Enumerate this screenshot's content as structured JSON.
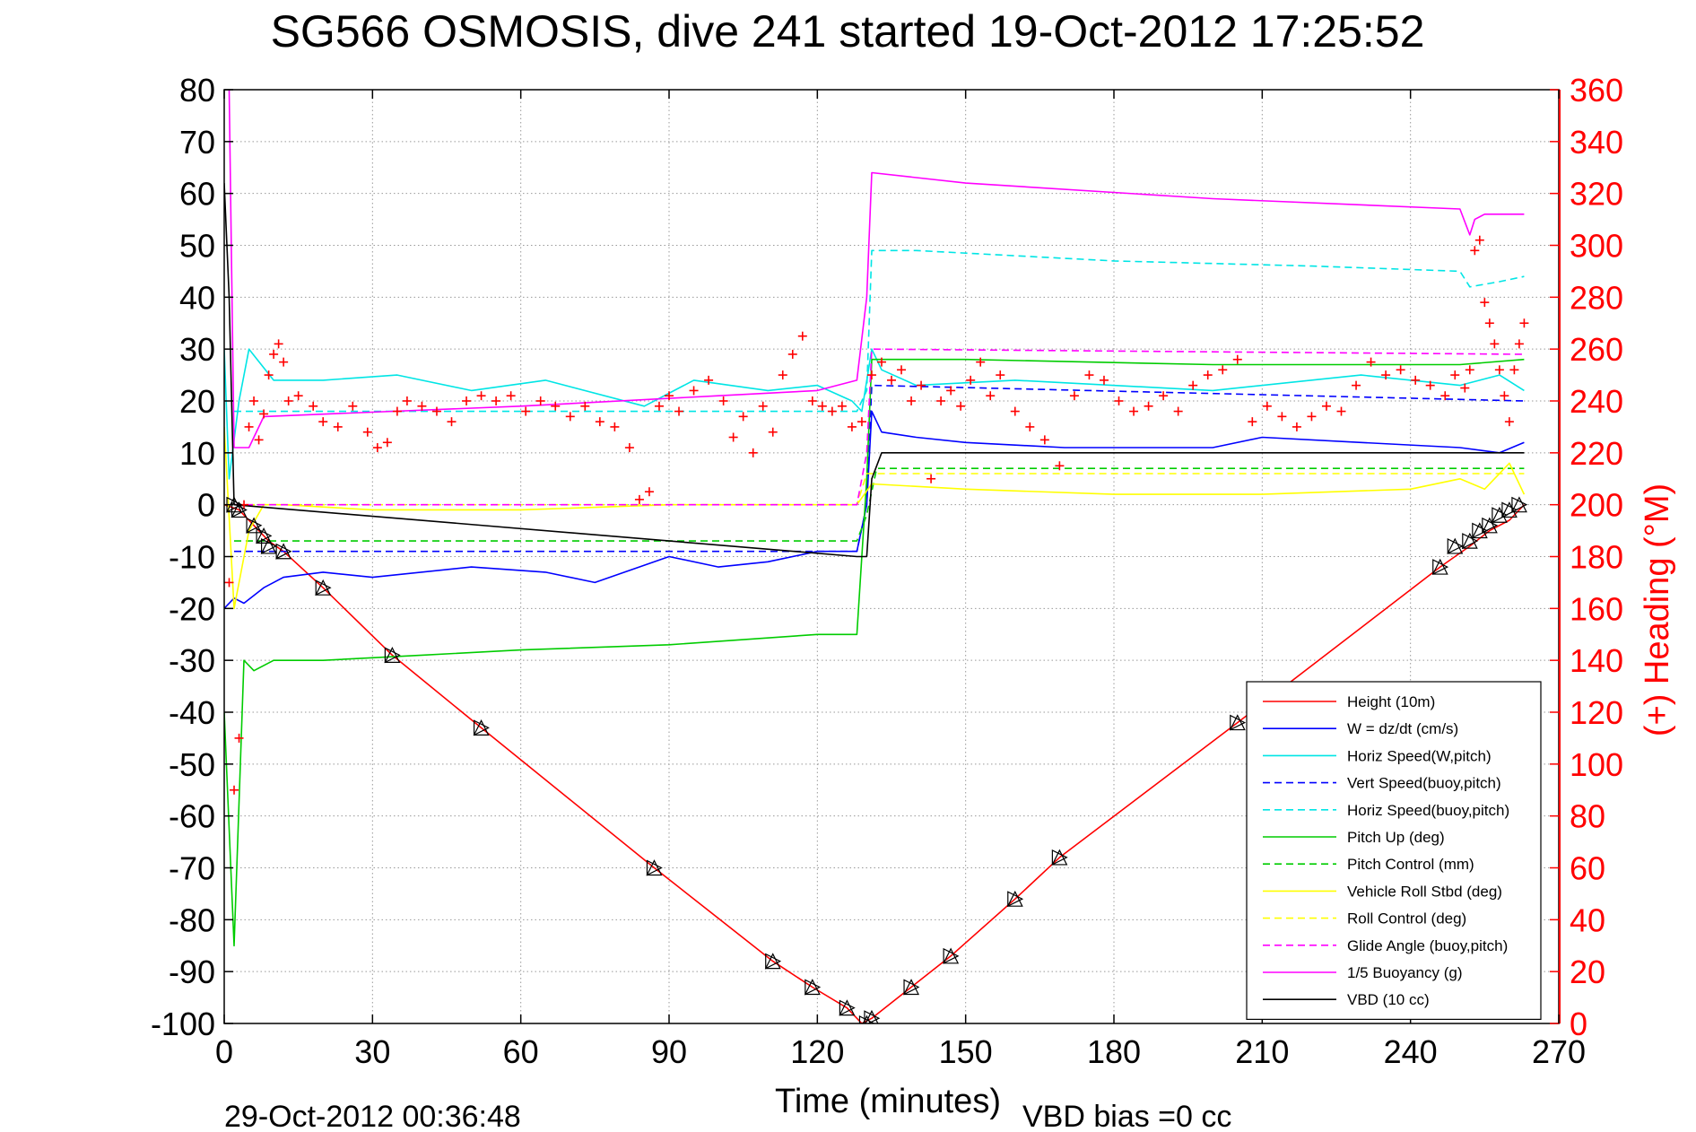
{
  "chart_data": {
    "type": "line",
    "title": "SG566 OSMOSIS, dive 241 started 19-Oct-2012 17:25:52",
    "xlabel": "Time (minutes)",
    "ylabel": "",
    "ylabel_right": "(+) Heading (°M)",
    "footer_left": "29-Oct-2012 00:36:48",
    "footer_right": "VBD bias =0 cc",
    "xlim": [
      0,
      270
    ],
    "ylim": [
      -100,
      80
    ],
    "ylim_right": [
      0,
      360
    ],
    "right_axis_color": "#ff0000",
    "xticks": [
      0,
      30,
      60,
      90,
      120,
      150,
      180,
      210,
      240,
      270
    ],
    "yticks": [
      -100,
      -90,
      -80,
      -70,
      -60,
      -50,
      -40,
      -30,
      -20,
      -10,
      0,
      10,
      20,
      30,
      40,
      50,
      60,
      70,
      80
    ],
    "yticks_right": [
      0,
      20,
      40,
      60,
      80,
      100,
      120,
      140,
      160,
      180,
      200,
      220,
      240,
      260,
      280,
      300,
      320,
      340,
      360
    ],
    "grid": true,
    "legend_position": "bottom-right",
    "series": [
      {
        "name": "Height (10m)",
        "color": "#ff0000",
        "style": "solid",
        "x": [
          0,
          3,
          6,
          9,
          12,
          20,
          34,
          52,
          87,
          111,
          119,
          126,
          129,
          131,
          139,
          147,
          160,
          169,
          205,
          246,
          252,
          256,
          260,
          263
        ],
        "y": [
          0,
          -1,
          -4,
          -7,
          -9,
          -16,
          -29,
          -43,
          -70,
          -88,
          -93,
          -97,
          -100,
          -99,
          -93,
          -87,
          -76,
          -68,
          -42,
          -12,
          -8,
          -5,
          -3,
          0
        ]
      },
      {
        "name": "W = dz/dt (cm/s)",
        "color": "#0000ff",
        "style": "solid",
        "x": [
          0,
          2,
          4,
          8,
          12,
          20,
          30,
          50,
          65,
          75,
          90,
          100,
          110,
          120,
          128,
          130,
          131,
          133,
          140,
          150,
          170,
          200,
          210,
          230,
          250,
          258,
          263
        ],
        "y": [
          -20,
          -18,
          -19,
          -16,
          -14,
          -13,
          -14,
          -12,
          -13,
          -15,
          -10,
          -12,
          -11,
          -9,
          -9,
          0,
          18,
          14,
          13,
          12,
          11,
          11,
          13,
          12,
          11,
          10,
          12
        ]
      },
      {
        "name": "Horiz Speed(W,pitch)",
        "color": "#00e5e5",
        "style": "solid",
        "x": [
          0,
          1,
          3,
          5,
          10,
          20,
          35,
          50,
          65,
          85,
          95,
          110,
          120,
          127,
          129,
          131,
          133,
          140,
          160,
          200,
          230,
          250,
          258,
          263
        ],
        "y": [
          30,
          5,
          20,
          30,
          24,
          24,
          25,
          22,
          24,
          19,
          24,
          22,
          23,
          20,
          18,
          30,
          26,
          23,
          24,
          22,
          25,
          23,
          25,
          22
        ]
      },
      {
        "name": "Vert Speed(buoy,pitch)",
        "color": "#0000ff",
        "style": "dashed",
        "x": [
          2,
          128,
          130,
          131,
          263
        ],
        "y": [
          -9,
          -9,
          0,
          23,
          20
        ]
      },
      {
        "name": "Horiz Speed(buoy,pitch)",
        "color": "#00e5e5",
        "style": "dashed",
        "x": [
          2,
          128,
          130,
          131,
          140,
          180,
          220,
          250,
          252,
          258,
          263
        ],
        "y": [
          18,
          18,
          22,
          49,
          49,
          47,
          46,
          45,
          42,
          43,
          44
        ]
      },
      {
        "name": "Pitch Up (deg)",
        "color": "#00cc00",
        "style": "solid",
        "x": [
          0,
          2,
          4,
          6,
          10,
          20,
          40,
          60,
          90,
          120,
          128,
          130,
          131,
          150,
          200,
          250,
          263
        ],
        "y": [
          -40,
          -85,
          -30,
          -32,
          -30,
          -30,
          -29,
          -28,
          -27,
          -25,
          -25,
          5,
          28,
          28,
          27,
          27,
          28
        ]
      },
      {
        "name": "Pitch Control (mm)",
        "color": "#00cc00",
        "style": "dashed",
        "x": [
          2,
          128,
          130,
          132,
          263
        ],
        "y": [
          -7,
          -7,
          -2,
          7,
          7
        ]
      },
      {
        "name": "Vehicle Roll Stbd (deg)",
        "color": "#ffff00",
        "style": "solid",
        "x": [
          0,
          2,
          5,
          8,
          12,
          30,
          60,
          90,
          120,
          128,
          131,
          150,
          180,
          210,
          240,
          250,
          255,
          260,
          263
        ],
        "y": [
          15,
          -20,
          -5,
          0,
          0,
          -1,
          -1,
          0,
          0,
          0,
          4,
          3,
          2,
          2,
          3,
          5,
          3,
          8,
          2
        ]
      },
      {
        "name": "Roll Control (deg)",
        "color": "#ffff00",
        "style": "dashed",
        "x": [
          0,
          2,
          128,
          130,
          263
        ],
        "y": [
          0,
          0,
          0,
          6,
          6
        ]
      },
      {
        "name": "Glide Angle (buoy,pitch)",
        "color": "#ff00ff",
        "style": "dashed",
        "x": [
          2,
          128,
          130,
          131,
          263
        ],
        "y": [
          0,
          0,
          10,
          30,
          29
        ]
      },
      {
        "name": "1/5 Buoyancy (g)",
        "color": "#ff00ff",
        "style": "solid",
        "x": [
          1,
          2,
          3,
          5,
          8,
          60,
          100,
          120,
          128,
          130,
          131,
          150,
          200,
          250,
          252,
          253,
          255,
          263
        ],
        "y": [
          80,
          11,
          11,
          11,
          17,
          19,
          21,
          22,
          24,
          40,
          64,
          62,
          59,
          57,
          52,
          55,
          56,
          56
        ]
      },
      {
        "name": "VBD (10 cc)",
        "color": "#000000",
        "style": "solid",
        "x": [
          0,
          1,
          2,
          128,
          130,
          131,
          133,
          263
        ],
        "y": [
          62,
          40,
          0,
          -10,
          -10,
          5,
          10,
          10
        ]
      }
    ],
    "heading_series": {
      "name": "(+) Heading",
      "color": "#ff0000",
      "marker": "+",
      "x": [
        1,
        2,
        3,
        4,
        5,
        6,
        7,
        8,
        9,
        10,
        11,
        12,
        13,
        15,
        18,
        20,
        23,
        26,
        29,
        31,
        33,
        35,
        37,
        40,
        43,
        46,
        49,
        52,
        55,
        58,
        61,
        64,
        67,
        70,
        73,
        76,
        79,
        82,
        84,
        86,
        88,
        90,
        92,
        95,
        98,
        101,
        103,
        105,
        107,
        109,
        111,
        113,
        115,
        117,
        119,
        121,
        123,
        125,
        127,
        129,
        131,
        133,
        135,
        137,
        139,
        141,
        143,
        145,
        147,
        149,
        151,
        153,
        155,
        157,
        160,
        163,
        166,
        169,
        172,
        175,
        178,
        181,
        184,
        187,
        190,
        193,
        196,
        199,
        202,
        205,
        208,
        211,
        214,
        217,
        220,
        223,
        226,
        229,
        232,
        235,
        238,
        241,
        244,
        247,
        249,
        251,
        252,
        253,
        254,
        255,
        256,
        257,
        258,
        259,
        260,
        261,
        262,
        263
      ],
      "y": [
        170,
        90,
        110,
        200,
        230,
        240,
        225,
        235,
        250,
        258,
        262,
        255,
        240,
        242,
        238,
        232,
        230,
        238,
        228,
        222,
        224,
        236,
        240,
        238,
        236,
        232,
        240,
        242,
        240,
        242,
        236,
        240,
        238,
        234,
        238,
        232,
        230,
        222,
        202,
        205,
        238,
        242,
        236,
        244,
        248,
        240,
        226,
        234,
        220,
        238,
        228,
        250,
        258,
        265,
        240,
        238,
        236,
        238,
        230,
        232,
        250,
        255,
        248,
        252,
        240,
        246,
        210,
        240,
        244,
        238,
        248,
        255,
        242,
        250,
        236,
        230,
        225,
        215,
        242,
        250,
        248,
        240,
        236,
        238,
        242,
        236,
        246,
        250,
        252,
        256,
        232,
        238,
        234,
        230,
        234,
        238,
        236,
        246,
        255,
        250,
        252,
        248,
        246,
        242,
        250,
        245,
        252,
        298,
        302,
        278,
        270,
        262,
        252,
        242,
        232,
        252,
        262,
        270
      ]
    },
    "markers": {
      "name": "Height triangles",
      "x": [
        2,
        3,
        6,
        8,
        9,
        12,
        20,
        34,
        52,
        87,
        111,
        119,
        126,
        130,
        131,
        139,
        147,
        160,
        169,
        205,
        246,
        249,
        252,
        254,
        256,
        258,
        260,
        262
      ],
      "y": [
        0,
        -1,
        -4,
        -6,
        -8,
        -9,
        -16,
        -29,
        -43,
        -70,
        -88,
        -93,
        -97,
        -100,
        -99,
        -93,
        -87,
        -76,
        -68,
        -42,
        -12,
        -8,
        -7,
        -5,
        -4,
        -2,
        -1,
        0
      ]
    }
  }
}
